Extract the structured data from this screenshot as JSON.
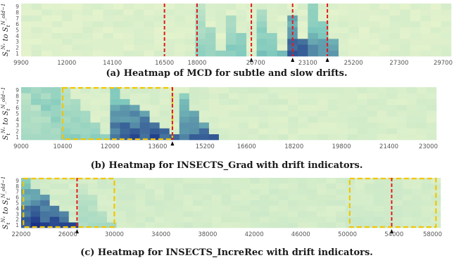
{
  "chart_data": [
    {
      "type": "heatmap",
      "caption": "(a) Heatmap of MCD for subtle and slow drifts.",
      "ylabel": "S_t^{N_1} to S_t^{N_old − 1}",
      "yticks": [
        "1",
        "2",
        "3",
        "4",
        "5",
        "6",
        "7",
        "8",
        "9"
      ],
      "xlim": [
        9900,
        29700
      ],
      "xticks": [
        9900,
        12000,
        14100,
        16500,
        18000,
        20700,
        23100,
        25200,
        27300,
        29700
      ],
      "cols": 42,
      "base_value": 0.08,
      "triangles": [
        {
          "start": 18100,
          "end": 19200,
          "peak": 0.48
        },
        {
          "start": 19200,
          "end": 20500,
          "peak": 0.55
        },
        {
          "start": 20700,
          "end": 22000,
          "peak": 0.62
        },
        {
          "start": 22000,
          "end": 23200,
          "peak": 0.95
        },
        {
          "start": 23300,
          "end": 24700,
          "peak": 0.78
        }
      ],
      "red_lines": [
        16500,
        18000,
        20500,
        22400,
        24000
      ],
      "arrows": [
        20500,
        22400,
        24000
      ],
      "yellow_boxes": []
    },
    {
      "type": "heatmap",
      "caption": "(b) Heatmap for INSECTS_Grad with drift indicators.",
      "ylabel": "S_t^{N_1} to S_t^{N_old − 1}",
      "yticks": [
        "1",
        "2",
        "3",
        "4",
        "5",
        "6",
        "7",
        "8",
        "9"
      ],
      "xlim": [
        9000,
        23000
      ],
      "xticks": [
        9000,
        10400,
        12000,
        13600,
        15200,
        16600,
        18200,
        19800,
        21400,
        23000
      ],
      "cols": 42,
      "base_value": 0.1,
      "triangles": [
        {
          "start": 9000,
          "end": 10400,
          "peak": 0.42,
          "band": 0.5
        },
        {
          "start": 10400,
          "end": 12000,
          "peak": 0.5
        },
        {
          "start": 12000,
          "end": 14200,
          "peak": 0.95
        },
        {
          "start": 14200,
          "end": 15600,
          "peak": 0.88
        }
      ],
      "red_lines": [
        14100
      ],
      "arrows": [
        14100
      ],
      "yellow_boxes": [
        [
          10400,
          14100
        ]
      ]
    },
    {
      "type": "heatmap",
      "caption": "(c) Heatmap for INSECTS_IncreRec with drift indicators.",
      "ylabel": "S_t^{N_1} to S_t^{N_old − 1}",
      "yticks": [
        "1",
        "2",
        "3",
        "4",
        "5",
        "6",
        "7",
        "8",
        "9"
      ],
      "xlim": [
        22000,
        58000
      ],
      "xticks": [
        22000,
        26000,
        30000,
        34000,
        38000,
        42000,
        46000,
        50000,
        54000,
        58000
      ],
      "cols": 44,
      "base_value": 0.12,
      "triangles": [
        {
          "start": 22200,
          "end": 26800,
          "peak": 1.0
        },
        {
          "start": 26800,
          "end": 30000,
          "peak": 0.38
        },
        {
          "start": 50200,
          "end": 53800,
          "peak": 0.22
        },
        {
          "start": 53800,
          "end": 57500,
          "peak": 0.18
        }
      ],
      "red_lines": [
        26800,
        53800
      ],
      "arrows": [
        26800,
        53800
      ],
      "yellow_boxes": [
        [
          22200,
          30000
        ],
        [
          50200,
          57600
        ]
      ]
    }
  ],
  "colors": {
    "low": "#f7fbcf",
    "mid": "#7fc9bd",
    "high": "#0c1f80",
    "drift_line": "#e41a1c",
    "drift_box": "#f2c500",
    "arrow": "#000000"
  }
}
